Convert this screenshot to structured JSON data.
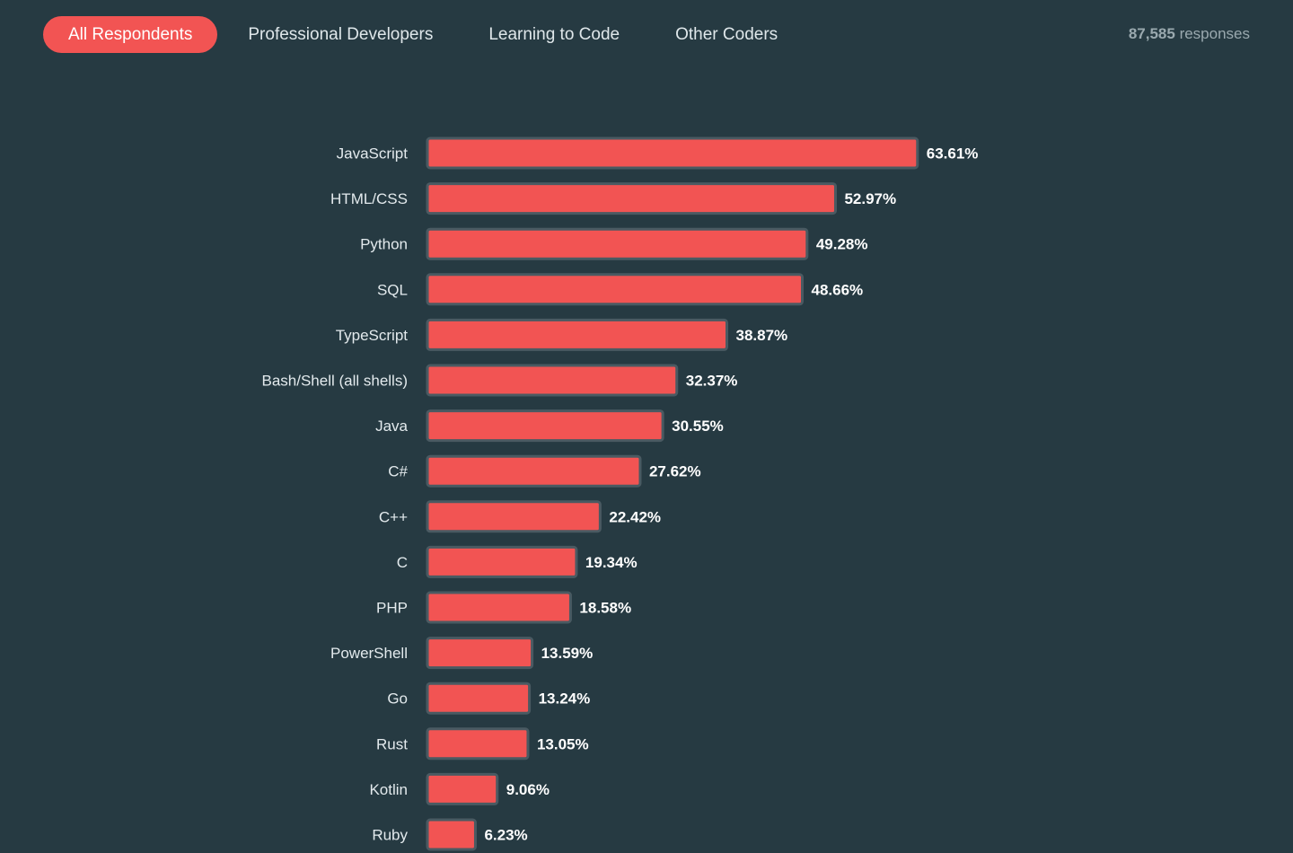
{
  "tabs": [
    {
      "label": "All Respondents",
      "active": true
    },
    {
      "label": "Professional Developers",
      "active": false
    },
    {
      "label": "Learning to Code",
      "active": false
    },
    {
      "label": "Other Coders",
      "active": false
    }
  ],
  "responses": {
    "count": "87,585",
    "suffix": "responses"
  },
  "colors": {
    "background": "#263a42",
    "accent": "#f25453",
    "bar": "#f25453",
    "bar_outline": "#4a5a62"
  },
  "chart_data": {
    "type": "bar",
    "orientation": "horizontal",
    "categories": [
      "JavaScript",
      "HTML/CSS",
      "Python",
      "SQL",
      "TypeScript",
      "Bash/Shell (all shells)",
      "Java",
      "C#",
      "C++",
      "C",
      "PHP",
      "PowerShell",
      "Go",
      "Rust",
      "Kotlin",
      "Ruby"
    ],
    "values": [
      63.61,
      52.97,
      49.28,
      48.66,
      38.87,
      32.37,
      30.55,
      27.62,
      22.42,
      19.34,
      18.58,
      13.59,
      13.24,
      13.05,
      9.06,
      6.23
    ],
    "value_labels": [
      "63.61%",
      "52.97%",
      "49.28%",
      "48.66%",
      "38.87%",
      "32.37%",
      "30.55%",
      "27.62%",
      "22.42%",
      "19.34%",
      "18.58%",
      "13.59%",
      "13.24%",
      "13.05%",
      "9.06%",
      "6.23%"
    ],
    "unit": "%",
    "title": "",
    "xlabel": "",
    "ylabel": "",
    "grid": false,
    "legend": "none"
  }
}
